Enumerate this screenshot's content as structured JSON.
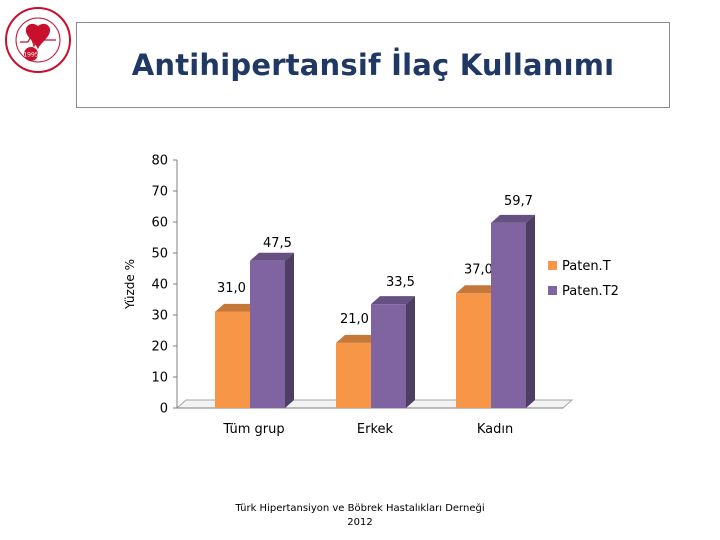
{
  "header": {
    "title": "Antihipertansif İlaç Kullanımı",
    "logo": {
      "year": "1995"
    }
  },
  "footer": {
    "line1": "Türk Hipertansiyon ve Böbrek Hastalıkları Derneği",
    "line2": "2012"
  },
  "colors": {
    "series1": "#f79646",
    "series2": "#8064a2",
    "title": "#1f3864"
  },
  "chart_data": {
    "type": "bar",
    "title": "",
    "xlabel": "",
    "ylabel": "Yüzde %",
    "ylim": [
      0,
      80
    ],
    "yticks": [
      0,
      10,
      20,
      30,
      40,
      50,
      60,
      70,
      80
    ],
    "categories": [
      "Tüm grup",
      "Erkek",
      "Kadın"
    ],
    "series": [
      {
        "name": "Paten.T",
        "values": [
          31.0,
          21.0,
          37.0
        ],
        "labels": [
          "31,0",
          "21,0",
          "37,0"
        ],
        "color": "#f79646"
      },
      {
        "name": "Paten.T2",
        "values": [
          47.5,
          33.5,
          59.7
        ],
        "labels": [
          "47,5",
          "33,5",
          "59,7"
        ],
        "color": "#8064a2"
      }
    ],
    "legend_position": "right",
    "grid": false,
    "style": "3d"
  }
}
